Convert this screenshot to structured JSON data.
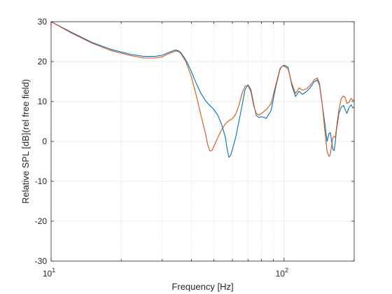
{
  "chart_data": {
    "type": "line",
    "title": "",
    "xlabel": "Frequency [Hz]",
    "ylabel": "Relative SPL [dB](rel free field)",
    "xscale": "log",
    "xlim": [
      10,
      200
    ],
    "ylim": [
      -30,
      30
    ],
    "yticks": [
      -30,
      -20,
      -10,
      0,
      10,
      20,
      30
    ],
    "ytick_labels": [
      "-30",
      "-20",
      "-10",
      "0",
      "10",
      "20",
      "30"
    ],
    "xticks_major": [
      10,
      100
    ],
    "xtick_labels": [
      {
        "base": "10",
        "exp": "1"
      },
      {
        "base": "10",
        "exp": "2"
      }
    ],
    "xticks_minor": [
      20,
      30,
      40,
      50,
      60,
      70,
      80,
      90
    ],
    "grid": true,
    "grid_style": {
      "major": "solid light gray",
      "minor": "dotted light gray"
    },
    "legend": "none",
    "series": [
      {
        "color": "#0072BD",
        "points": [
          [
            10,
            30
          ],
          [
            12,
            27.6
          ],
          [
            15,
            24.8
          ],
          [
            18,
            23.1
          ],
          [
            20,
            22.4
          ],
          [
            22,
            21.8
          ],
          [
            25,
            21.3
          ],
          [
            28,
            21.3
          ],
          [
            30,
            21.6
          ],
          [
            32,
            22.3
          ],
          [
            34,
            22.9
          ],
          [
            35,
            22.8
          ],
          [
            36,
            22.3
          ],
          [
            38,
            20.3
          ],
          [
            40,
            17.5
          ],
          [
            42,
            14.5
          ],
          [
            44,
            12.0
          ],
          [
            46,
            10.2
          ],
          [
            48,
            9.0
          ],
          [
            50,
            8.0
          ],
          [
            52,
            6.5
          ],
          [
            54,
            4.2
          ],
          [
            56,
            1.0
          ],
          [
            57,
            -2.0
          ],
          [
            58,
            -4.0
          ],
          [
            59,
            -3.5
          ],
          [
            60,
            -2.0
          ],
          [
            62,
            1.0
          ],
          [
            64,
            5.0
          ],
          [
            66,
            9.0
          ],
          [
            68,
            13.0
          ],
          [
            70,
            14.2
          ],
          [
            72,
            13.0
          ],
          [
            74,
            9.5
          ],
          [
            76,
            6.5
          ],
          [
            78,
            6.0
          ],
          [
            80,
            6.2
          ],
          [
            84,
            5.8
          ],
          [
            88,
            7.8
          ],
          [
            92,
            13.5
          ],
          [
            96,
            18.0
          ],
          [
            98,
            18.8
          ],
          [
            100,
            19.1
          ],
          [
            104,
            18.6
          ],
          [
            108,
            14.0
          ],
          [
            112,
            11.2
          ],
          [
            116,
            12.6
          ],
          [
            120,
            11.8
          ],
          [
            125,
            12.5
          ],
          [
            130,
            13.6
          ],
          [
            135,
            15.0
          ],
          [
            139,
            15.4
          ],
          [
            142,
            14.0
          ],
          [
            146,
            9.0
          ],
          [
            150,
            4.0
          ],
          [
            153,
            0.0
          ],
          [
            156,
            2.0
          ],
          [
            158,
            2.2
          ],
          [
            160,
            0.0
          ],
          [
            162,
            -2.0
          ],
          [
            164,
            -2.3
          ],
          [
            166,
            0.0
          ],
          [
            168,
            3.0
          ],
          [
            172,
            7.0
          ],
          [
            176,
            8.6
          ],
          [
            180,
            9.0
          ],
          [
            183,
            8.0
          ],
          [
            186,
            7.0
          ],
          [
            190,
            8.5
          ],
          [
            194,
            9.2
          ],
          [
            197,
            8.4
          ],
          [
            200,
            8.6
          ]
        ]
      },
      {
        "color": "#D95319",
        "points": [
          [
            10,
            30
          ],
          [
            12,
            27.4
          ],
          [
            15,
            24.6
          ],
          [
            18,
            22.8
          ],
          [
            20,
            22.1
          ],
          [
            22,
            21.5
          ],
          [
            25,
            20.9
          ],
          [
            28,
            20.9
          ],
          [
            30,
            21.2
          ],
          [
            32,
            22.0
          ],
          [
            34,
            22.6
          ],
          [
            35,
            22.6
          ],
          [
            36,
            22.1
          ],
          [
            38,
            19.8
          ],
          [
            40,
            16.2
          ],
          [
            42,
            11.5
          ],
          [
            44,
            6.5
          ],
          [
            46,
            2.0
          ],
          [
            47,
            -0.8
          ],
          [
            48,
            -2.4
          ],
          [
            49,
            -2.3
          ],
          [
            50,
            -1.2
          ],
          [
            52,
            1.0
          ],
          [
            54,
            3.0
          ],
          [
            56,
            4.4
          ],
          [
            58,
            5.2
          ],
          [
            60,
            5.7
          ],
          [
            62,
            6.8
          ],
          [
            64,
            9.0
          ],
          [
            66,
            12.0
          ],
          [
            68,
            13.8
          ],
          [
            70,
            14.0
          ],
          [
            72,
            12.5
          ],
          [
            74,
            9.0
          ],
          [
            76,
            7.0
          ],
          [
            78,
            6.6
          ],
          [
            80,
            7.0
          ],
          [
            84,
            8.0
          ],
          [
            88,
            9.5
          ],
          [
            92,
            14.0
          ],
          [
            96,
            18.2
          ],
          [
            98,
            18.8
          ],
          [
            100,
            18.9
          ],
          [
            104,
            18.2
          ],
          [
            108,
            14.5
          ],
          [
            112,
            12.0
          ],
          [
            116,
            13.4
          ],
          [
            120,
            12.8
          ],
          [
            125,
            13.2
          ],
          [
            130,
            14.2
          ],
          [
            135,
            15.5
          ],
          [
            139,
            15.9
          ],
          [
            142,
            14.5
          ],
          [
            146,
            9.0
          ],
          [
            150,
            2.0
          ],
          [
            153,
            -2.5
          ],
          [
            156,
            -3.8
          ],
          [
            158,
            -3.2
          ],
          [
            160,
            -1.0
          ],
          [
            162,
            1.0
          ],
          [
            164,
            1.2
          ],
          [
            166,
            1.0
          ],
          [
            168,
            3.5
          ],
          [
            172,
            8.0
          ],
          [
            176,
            10.8
          ],
          [
            180,
            11.4
          ],
          [
            183,
            11.0
          ],
          [
            186,
            9.5
          ],
          [
            190,
            9.8
          ],
          [
            194,
            10.8
          ],
          [
            197,
            10.3
          ],
          [
            200,
            10.4
          ]
        ]
      }
    ]
  }
}
